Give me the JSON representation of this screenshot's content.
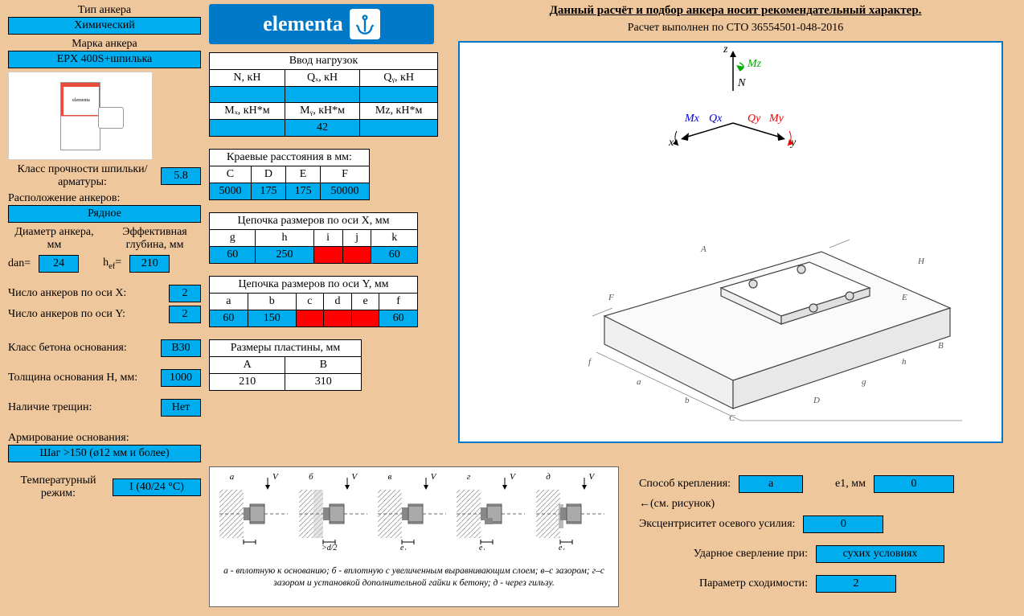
{
  "header": {
    "title": "Данный расчёт и подбор анкера носит рекомендательный характер.",
    "subtitle": "Расчет выполнен по СТО 36554501-048-2016"
  },
  "logo_text": "elementa",
  "left": {
    "anchor_type_label": "Тип анкера",
    "anchor_type": "Химический",
    "anchor_brand_label": "Марка анкера",
    "anchor_brand": "EPX 400S+шпилька",
    "strength_class_label": "Класс прочности шпильки/арматуры:",
    "strength_class": "5.8",
    "arrangement_label": "Расположение анкеров:",
    "arrangement": "Рядное",
    "diameter_label": "Диаметр анкера, мм",
    "depth_label": "Эффективная глубина, мм",
    "dan_label": "dan=",
    "dan": "24",
    "hef_label": "hₑf=",
    "hef": "210",
    "count_x_label": "Число анкеров по оси X:",
    "count_x": "2",
    "count_y_label": "Число анкеров по оси Y:",
    "count_y": "2",
    "concrete_class_label": "Класс бетона основания:",
    "concrete_class": "B30",
    "thickness_label": "Толщина основания H, мм:",
    "thickness": "1000",
    "cracks_label": "Наличие трещин:",
    "cracks": "Нет",
    "reinforcement_label": "Армирование основания:",
    "reinforcement": "Шаг >150 (ø12 мм и более)",
    "temp_label": "Температурный режим:",
    "temp": "I (40/24 °C)"
  },
  "loads": {
    "title": "Ввод нагрузок",
    "cols1": [
      "N, кН",
      "Qₓ, кН",
      "Qᵧ, кН"
    ],
    "vals1": [
      "",
      "",
      ""
    ],
    "cols2": [
      "Mₓ, кН*м",
      "Mᵧ, кН*м",
      "Mz, кН*м"
    ],
    "vals2": [
      "",
      "42",
      ""
    ]
  },
  "edge": {
    "title": "Краевые расстояния в мм:",
    "cols": [
      "C",
      "D",
      "E",
      "F"
    ],
    "vals": [
      "5000",
      "175",
      "175",
      "50000"
    ]
  },
  "chainX": {
    "title": "Цепочка размеров по оси X, мм",
    "cols": [
      "g",
      "h",
      "i",
      "j",
      "k"
    ],
    "vals": [
      "60",
      "250",
      "",
      "",
      "60"
    ],
    "red_idx": [
      2,
      3
    ]
  },
  "chainY": {
    "title": "Цепочка размеров по оси Y, мм",
    "cols": [
      "a",
      "b",
      "c",
      "d",
      "e",
      "f"
    ],
    "vals": [
      "60",
      "150",
      "",
      "",
      "",
      "60"
    ],
    "red_idx": [
      2,
      3,
      4
    ]
  },
  "plate": {
    "title": "Размеры пластины, мм",
    "cols": [
      "A",
      "B"
    ],
    "vals": [
      "210",
      "310"
    ]
  },
  "fastening": {
    "labels": [
      "а",
      "б",
      "в",
      "г",
      "д"
    ],
    "v_label": "V",
    "dims": [
      "<d/2",
      ">d/2",
      "e₁",
      "e₁",
      "e₁"
    ],
    "text": "а - вплотную к основанию; б - вплотную с увеличенным выравнивающим слоем; в–с зазором; г–с зазором и установкой дополнительной гайки к бетону; д - через гильзу."
  },
  "right": {
    "method_label": "Способ крепления:",
    "method": "а",
    "e1_label": "e1, мм",
    "e1": "0",
    "method_note": "←(см. рисунок)",
    "ecc_label": "Эксцентриситет осевого усилия:",
    "ecc": "0",
    "drill_label": "Ударное сверление при:",
    "drill": "сухих условиях",
    "conv_label": "Параметр сходимости:",
    "conv": "2"
  },
  "axis3d": {
    "z": "z",
    "mz": "Mz",
    "n": "N",
    "mx": "Mx",
    "qx": "Qx",
    "qy": "Qy",
    "my": "My",
    "x": "x",
    "y": "y"
  },
  "colors": {
    "blue": "#00aeef",
    "red": "#ff0000",
    "bg": "#efc79d",
    "logo": "#0078c8"
  }
}
